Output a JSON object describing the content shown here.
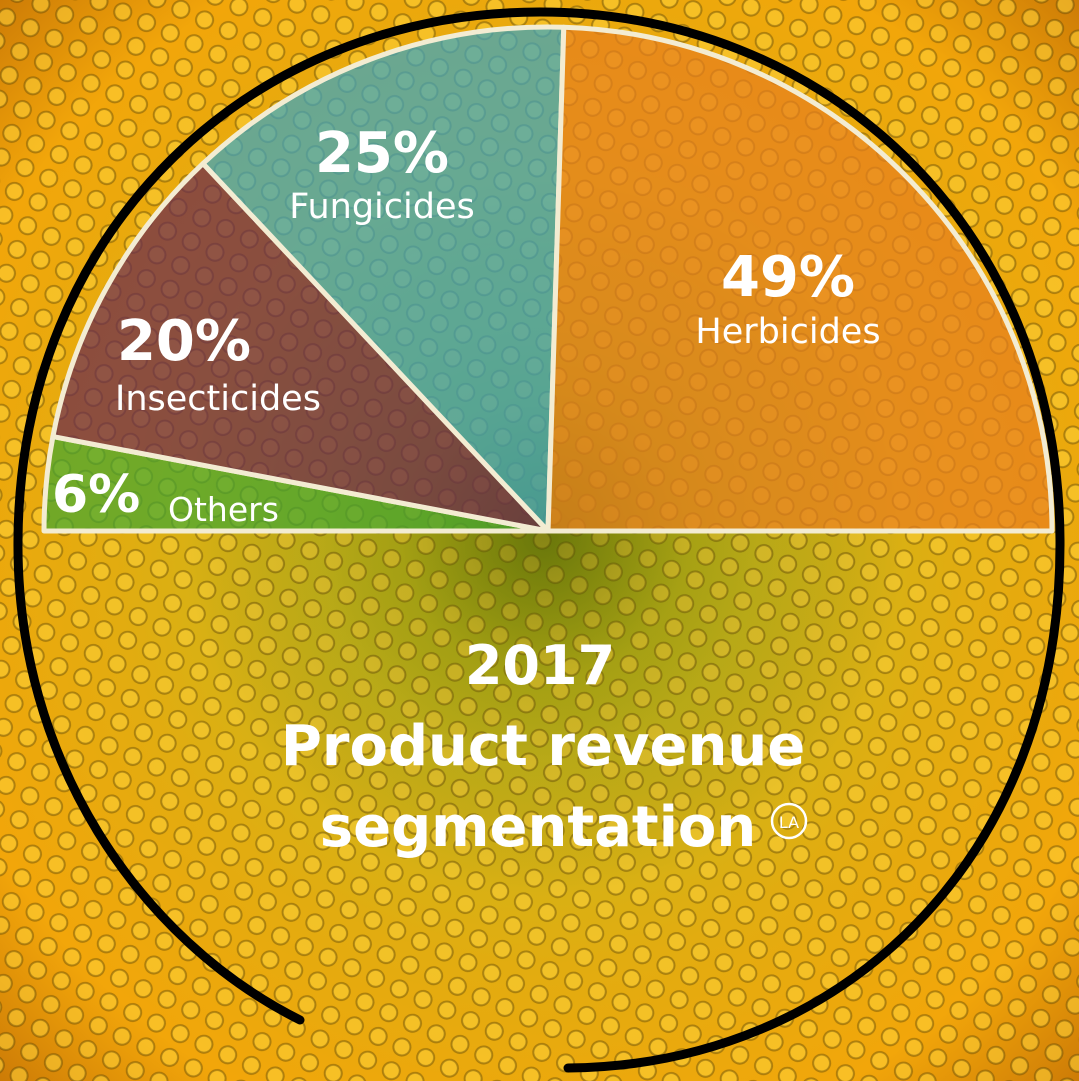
{
  "chart_data": {
    "type": "pie",
    "title_year": "2017",
    "title_line1": "Product revenue",
    "title_line2": "segmentation",
    "badge": "LA",
    "layout": "half-pie (upper semicircle)",
    "slices": [
      {
        "pct_label": "49%",
        "name": "Herbicides",
        "value": 49,
        "color": "#e8801e"
      },
      {
        "pct_label": "25%",
        "name": "Fungicides",
        "value": 25,
        "color": "#3aa6c4"
      },
      {
        "pct_label": "20%",
        "name": "Insecticides",
        "value": 20,
        "color": "#6a2a50"
      },
      {
        "pct_label": "6%",
        "name": "Others",
        "value": 6,
        "color": "#44a832"
      }
    ]
  },
  "colors": {
    "outline": "#000000",
    "slice_border": "#f3ecd2"
  }
}
